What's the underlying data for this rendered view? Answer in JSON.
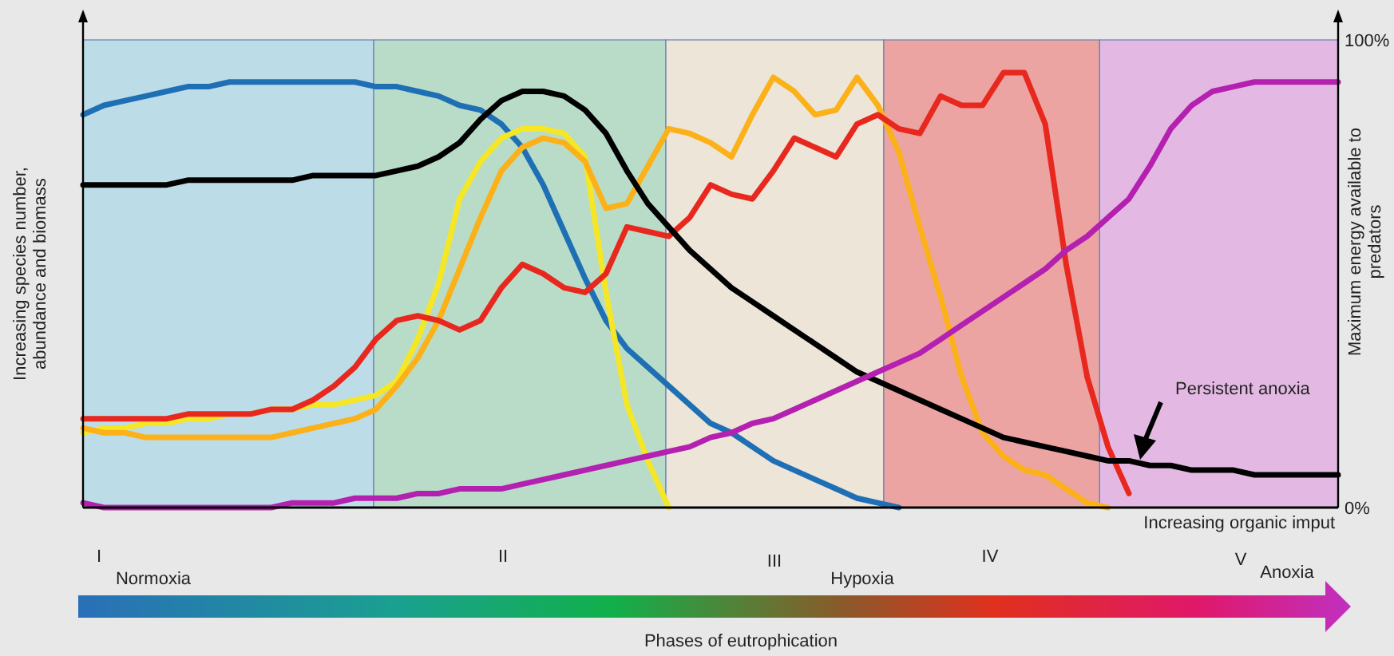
{
  "chart_data": {
    "type": "line",
    "xlabel": "Increasing organic imput",
    "ylabel": "Increasing species number, abundance and biomass",
    "y2label": "Maximum energy available to predators",
    "categories": [
      null,
      null,
      null,
      null,
      null,
      null,
      null,
      null,
      null,
      null,
      null,
      null,
      null,
      null,
      null,
      null,
      null,
      null,
      null,
      null,
      null,
      null,
      null,
      null,
      null,
      null,
      null,
      null,
      null,
      null,
      null,
      null,
      null,
      null,
      null,
      null,
      null,
      null,
      null,
      null,
      null,
      null,
      null,
      null,
      null,
      null,
      null,
      null,
      null,
      null,
      null,
      null,
      null,
      null,
      null,
      null,
      null,
      null,
      null,
      null,
      null
    ],
    "ylim": [
      0,
      100
    ],
    "yticks": [
      {
        "value": 0,
        "label": "0%"
      },
      {
        "value": 100,
        "label": "100%"
      }
    ],
    "tick_labels": "y",
    "line_style": "solid",
    "annotations": [
      "I",
      "II",
      "III",
      "IV",
      "V",
      "Normoxia",
      "Hypoxia",
      "Anoxia",
      "Phases of eutrophication",
      "Persistent anoxia"
    ],
    "series": [
      {
        "color": "#1f6fb5",
        "values": [
          84,
          86,
          87,
          88,
          89,
          90,
          90,
          91,
          91,
          91,
          91,
          91,
          91,
          91,
          90,
          90,
          89,
          88,
          86,
          85,
          82,
          77,
          69,
          59,
          49,
          40,
          34,
          30,
          26,
          22,
          18,
          16,
          13,
          10,
          8,
          6,
          4,
          2,
          1,
          0,
          null,
          null,
          null,
          null,
          null,
          null,
          null,
          null,
          null,
          null,
          null,
          null,
          null,
          null,
          null,
          null,
          null,
          null,
          null,
          null,
          null
        ]
      },
      {
        "color": "#f5e626",
        "values": [
          16,
          17,
          17,
          18,
          18,
          19,
          19,
          20,
          20,
          21,
          21,
          22,
          22,
          23,
          24,
          27,
          36,
          48,
          66,
          74,
          79,
          81,
          81,
          80,
          75,
          46,
          22,
          10,
          0,
          null,
          null,
          null,
          null,
          null,
          null,
          null,
          null,
          null,
          null,
          null,
          null,
          null,
          null,
          null,
          null,
          null,
          null,
          null,
          null,
          null,
          null,
          null,
          null,
          null,
          null,
          null,
          null,
          null,
          null,
          null,
          null
        ]
      },
      {
        "color": "#fbb117",
        "values": [
          17,
          16,
          16,
          15,
          15,
          15,
          15,
          15,
          15,
          15,
          16,
          17,
          18,
          19,
          21,
          26,
          32,
          40,
          51,
          62,
          72,
          77,
          79,
          78,
          74,
          64,
          65,
          73,
          81,
          80,
          78,
          75,
          84,
          92,
          89,
          84,
          85,
          92,
          86,
          76,
          60,
          45,
          28,
          16,
          11,
          8,
          7,
          4,
          1,
          0,
          null,
          null,
          null,
          null,
          null,
          null,
          null,
          null,
          null,
          null,
          null
        ]
      },
      {
        "color": "#e8281e",
        "values": [
          19,
          19,
          19,
          19,
          19,
          20,
          20,
          20,
          20,
          21,
          21,
          23,
          26,
          30,
          36,
          40,
          41,
          40,
          38,
          40,
          47,
          52,
          50,
          47,
          46,
          50,
          60,
          59,
          58,
          62,
          69,
          67,
          66,
          72,
          79,
          77,
          75,
          82,
          84,
          81,
          80,
          88,
          86,
          86,
          93,
          93,
          82,
          52,
          28,
          13,
          3,
          null,
          null,
          null,
          null,
          null,
          null,
          null,
          null,
          null,
          null
        ]
      },
      {
        "color": "#000000",
        "values": [
          69,
          69,
          69,
          69,
          69,
          70,
          70,
          70,
          70,
          70,
          70,
          71,
          71,
          71,
          71,
          72,
          73,
          75,
          78,
          83,
          87,
          89,
          89,
          88,
          85,
          80,
          72,
          65,
          60,
          55,
          51,
          47,
          44,
          41,
          38,
          35,
          32,
          29,
          27,
          25,
          23,
          21,
          19,
          17,
          15,
          14,
          13,
          12,
          11,
          10,
          10,
          9,
          9,
          8,
          8,
          8,
          7,
          7,
          7,
          7,
          7
        ]
      },
      {
        "color": "#b420b0",
        "values": [
          1,
          0,
          0,
          0,
          0,
          0,
          0,
          0,
          0,
          0,
          1,
          1,
          1,
          2,
          2,
          2,
          3,
          3,
          4,
          4,
          4,
          5,
          6,
          7,
          8,
          9,
          10,
          11,
          12,
          13,
          15,
          16,
          18,
          19,
          21,
          23,
          25,
          27,
          29,
          31,
          33,
          36,
          39,
          42,
          45,
          48,
          51,
          55,
          58,
          62,
          66,
          73,
          81,
          86,
          89,
          90,
          91,
          91,
          91,
          91,
          91
        ]
      }
    ]
  }
}
